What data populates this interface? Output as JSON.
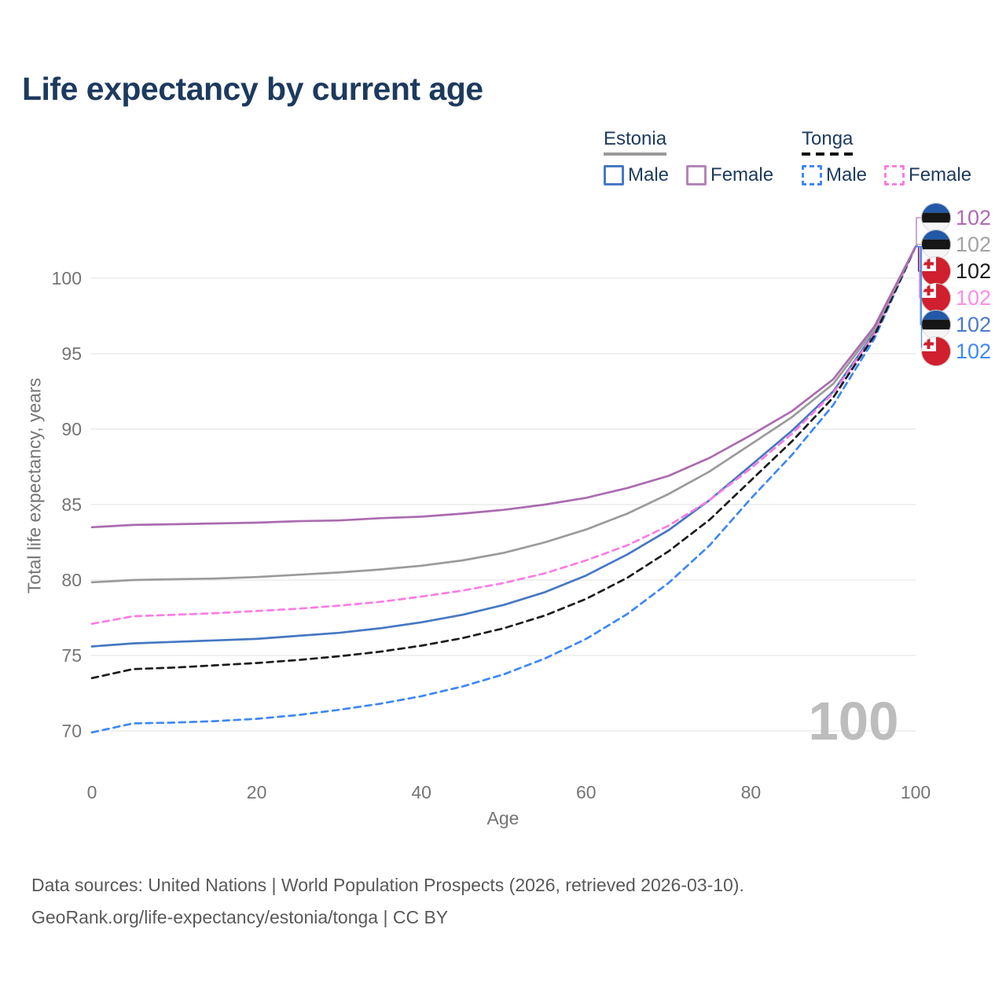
{
  "footer": {
    "line1": "Data sources: United Nations | World Population Prospects (2026, retrieved 2026-03-10).",
    "line2": "GeoRank.org/life-expectancy/estonia/tonga | CC BY"
  },
  "legend": {
    "groups": [
      {
        "name": "Estonia",
        "line_style": "solid",
        "line_color": "#9a9a9a",
        "items": [
          {
            "label": "Male",
            "color": "#4779c4",
            "dashed": false
          },
          {
            "label": "Female",
            "color": "#b384b6",
            "dashed": false
          }
        ]
      },
      {
        "name": "Tonga",
        "line_style": "dashed",
        "line_color": "#111111",
        "items": [
          {
            "label": "Male",
            "color": "#3f88f4",
            "dashed": true
          },
          {
            "label": "Female",
            "color": "#fb7ce3",
            "dashed": true
          }
        ]
      }
    ]
  },
  "chart_data": {
    "type": "line",
    "title": "Life expectancy by current age",
    "xlabel": "Age",
    "ylabel": "Total life expectancy, years",
    "xlim": [
      0,
      100
    ],
    "ylim": [
      68.5,
      103.5
    ],
    "xticks": [
      0,
      20,
      40,
      60,
      80,
      100
    ],
    "yticks": [
      70,
      75,
      80,
      85,
      90,
      95,
      100
    ],
    "grid": "horizontal",
    "legend_position": "top-right",
    "watermark_age_counter": "100",
    "x": [
      0,
      5,
      10,
      15,
      20,
      25,
      30,
      35,
      40,
      45,
      50,
      55,
      60,
      65,
      70,
      75,
      80,
      85,
      90,
      95,
      100
    ],
    "series": [
      {
        "id": "estonia-female",
        "country": "Estonia",
        "sex": "Female",
        "color": "#ab6bb0",
        "dashed": false,
        "flag": "estonia",
        "end_label": "102",
        "label_color": "#b06ab5",
        "label_row": 0,
        "values": [
          83.5,
          83.65,
          83.7,
          83.75,
          83.8,
          83.9,
          83.95,
          84.1,
          84.2,
          84.4,
          84.65,
          85.0,
          85.45,
          86.1,
          86.9,
          88.1,
          89.6,
          91.2,
          93.3,
          96.8,
          102.1
        ]
      },
      {
        "id": "estonia-total",
        "country": "Estonia",
        "sex": "Both",
        "color": "#9b9b9b",
        "dashed": false,
        "flag": "estonia",
        "end_label": "102",
        "label_color": "#a3a3a3",
        "label_row": 1,
        "values": [
          79.85,
          80.0,
          80.05,
          80.1,
          80.2,
          80.35,
          80.5,
          80.7,
          80.95,
          81.3,
          81.8,
          82.5,
          83.35,
          84.4,
          85.7,
          87.2,
          89.0,
          90.8,
          93.0,
          96.6,
          102.1
        ]
      },
      {
        "id": "tonga-total",
        "country": "Tonga",
        "sex": "Both",
        "color": "#1c1c1c",
        "dashed": true,
        "flag": "tonga",
        "end_label": "102",
        "label_color": "#1a1a1a",
        "label_row": 2,
        "values": [
          73.5,
          74.1,
          74.2,
          74.35,
          74.5,
          74.7,
          74.95,
          75.25,
          75.65,
          76.15,
          76.8,
          77.65,
          78.75,
          80.15,
          81.9,
          84.0,
          86.6,
          89.2,
          92.1,
          96.2,
          102.1
        ]
      },
      {
        "id": "tonga-female",
        "country": "Tonga",
        "sex": "Female",
        "color": "#fb7ce3",
        "dashed": true,
        "flag": "tonga",
        "end_label": "102",
        "label_color": "#fb8ce8",
        "label_row": 3,
        "values": [
          77.1,
          77.6,
          77.7,
          77.8,
          77.95,
          78.1,
          78.3,
          78.55,
          78.9,
          79.3,
          79.8,
          80.45,
          81.3,
          82.3,
          83.6,
          85.3,
          87.4,
          89.7,
          92.4,
          96.3,
          102.1
        ]
      },
      {
        "id": "estonia-male",
        "country": "Estonia",
        "sex": "Male",
        "color": "#4678c2",
        "dashed": false,
        "flag": "estonia",
        "end_label": "102",
        "label_color": "#4a7bc5",
        "label_row": 4,
        "values": [
          75.6,
          75.8,
          75.9,
          76.0,
          76.1,
          76.3,
          76.5,
          76.8,
          77.2,
          77.7,
          78.35,
          79.2,
          80.3,
          81.7,
          83.3,
          85.3,
          87.6,
          89.9,
          92.5,
          96.4,
          102.1
        ]
      },
      {
        "id": "tonga-male",
        "country": "Tonga",
        "sex": "Male",
        "color": "#3f88f4",
        "dashed": true,
        "flag": "tonga",
        "end_label": "102",
        "label_color": "#3e8af5",
        "label_row": 5,
        "values": [
          69.9,
          70.5,
          70.55,
          70.65,
          70.8,
          71.05,
          71.4,
          71.8,
          72.3,
          72.95,
          73.75,
          74.8,
          76.1,
          77.75,
          79.8,
          82.3,
          85.4,
          88.3,
          91.6,
          96.0,
          102.1
        ]
      }
    ]
  }
}
